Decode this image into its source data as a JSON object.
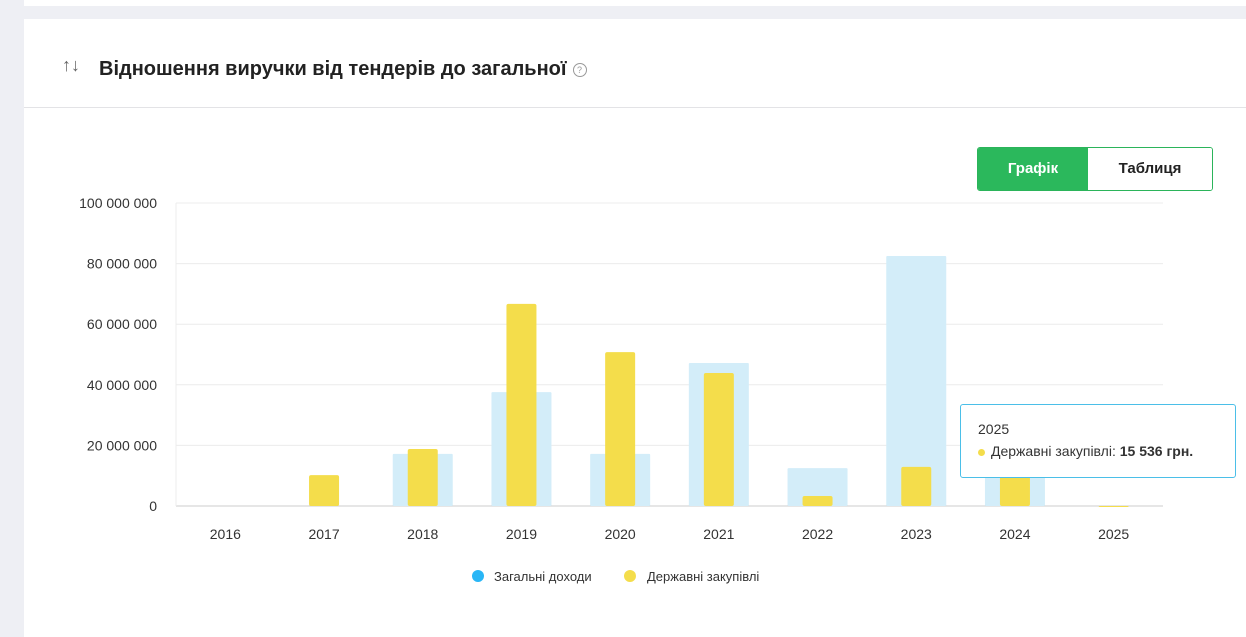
{
  "header": {
    "title": "Відношення виручки від тендерів до загальної",
    "sort_icon": "sort-arrows-icon",
    "help_icon": "question-circle-icon"
  },
  "toggle": {
    "chart_label": "Графік",
    "table_label": "Таблиця",
    "active": "chart"
  },
  "tooltip": {
    "year": "2025",
    "series": "Державні закупівлі:",
    "value": "15 536 грн."
  },
  "colors": {
    "total": "#d3edf9",
    "gov": "#f4dd4b",
    "legend_total": "#29b6f6",
    "active": "#2bb85c"
  },
  "chart_data": {
    "type": "bar",
    "categories": [
      "2016",
      "2017",
      "2018",
      "2019",
      "2020",
      "2021",
      "2022",
      "2023",
      "2024",
      "2025"
    ],
    "series": [
      {
        "name": "Загальні доходи",
        "values": [
          0,
          0,
          17200000,
          37600000,
          17200000,
          47200000,
          12500000,
          82500000,
          32300000,
          0
        ]
      },
      {
        "name": "Державні закупівлі",
        "values": [
          0,
          10200000,
          18800000,
          66700000,
          50800000,
          43900000,
          3300000,
          12900000,
          10900000,
          15536
        ]
      }
    ],
    "ylim": [
      0,
      100000000
    ],
    "yticks": [
      "0",
      "20 000 000",
      "40 000 000",
      "60 000 000",
      "80 000 000",
      "100 000 000"
    ],
    "grid": true,
    "legend": "bottom"
  }
}
